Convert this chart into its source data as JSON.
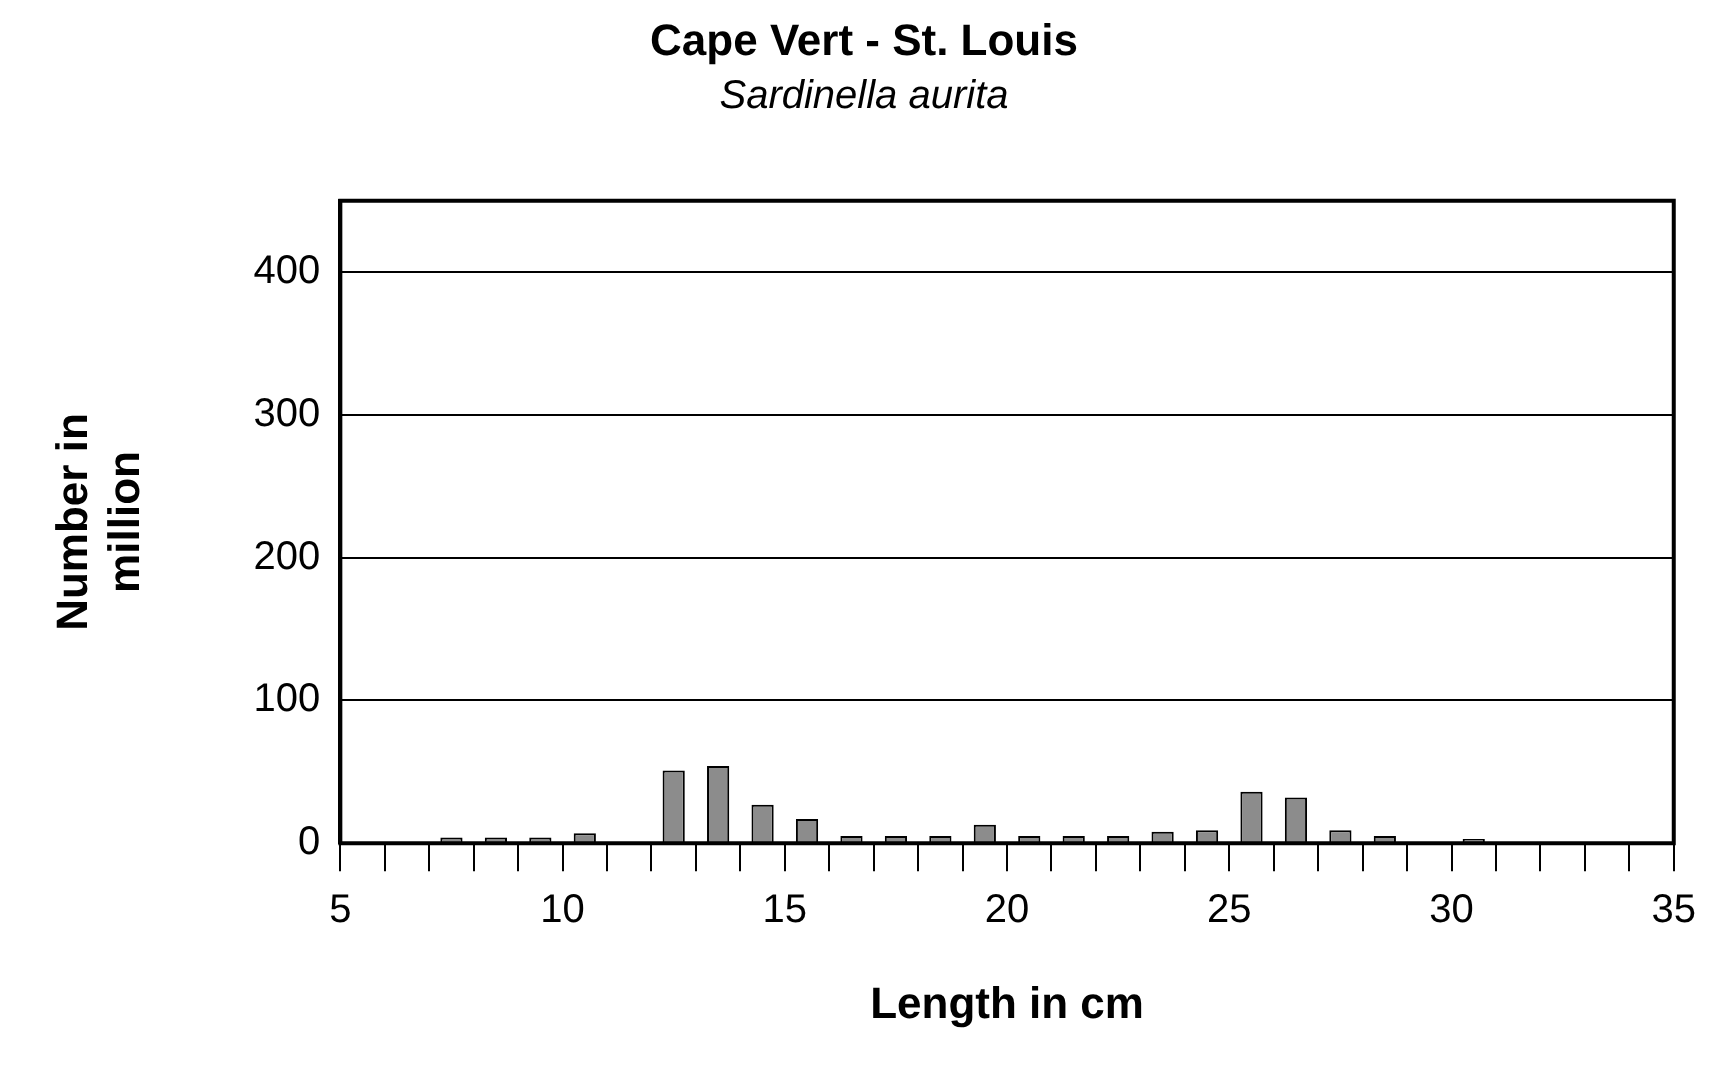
{
  "chart_data": {
    "type": "histogram",
    "title": "Cape Vert - St. Louis",
    "subtitle": "Sardinella aurita",
    "xlabel": "Length in cm",
    "ylabel": "Number in million",
    "bins": [
      5,
      6,
      7,
      8,
      9,
      10,
      11,
      12,
      13,
      14,
      15,
      16,
      17,
      18,
      19,
      20,
      21,
      22,
      23,
      24,
      25,
      26,
      27,
      28,
      29,
      30,
      31,
      32,
      33,
      34,
      35
    ],
    "values": [
      0,
      0,
      4,
      4,
      4,
      7,
      0,
      51,
      54,
      27,
      17,
      5,
      5,
      5,
      13,
      5,
      5,
      5,
      8,
      9,
      36,
      32,
      9,
      5,
      0,
      3,
      0,
      0,
      0,
      0
    ],
    "color": "#8c8c8c",
    "xlim": [
      5,
      35
    ],
    "xticks": [
      5,
      {
        "value": 6,
        "label": null
      },
      {
        "value": 7,
        "label": null
      },
      {
        "value": 8,
        "label": null
      },
      {
        "value": 9,
        "label": null
      },
      10,
      {
        "value": 11,
        "label": null
      },
      {
        "value": 12,
        "label": null
      },
      {
        "value": 13,
        "label": null
      },
      {
        "value": 14,
        "label": null
      },
      15,
      {
        "value": 16,
        "label": null
      },
      {
        "value": 17,
        "label": null
      },
      {
        "value": 18,
        "label": null
      },
      {
        "value": 19,
        "label": null
      },
      20,
      {
        "value": 21,
        "label": null
      },
      {
        "value": 22,
        "label": null
      },
      {
        "value": 23,
        "label": null
      },
      {
        "value": 24,
        "label": null
      },
      25,
      {
        "value": 26,
        "label": null
      },
      {
        "value": 27,
        "label": null
      },
      {
        "value": 28,
        "label": null
      },
      {
        "value": 29,
        "label": null
      },
      30,
      {
        "value": 31,
        "label": null
      },
      {
        "value": 32,
        "label": null
      },
      {
        "value": 33,
        "label": null
      },
      {
        "value": 34,
        "label": null
      },
      35
    ],
    "ylim": [
      0,
      450
    ],
    "yticks": [
      0,
      100,
      200,
      300,
      400
    ],
    "grid": "y",
    "legend": false
  }
}
